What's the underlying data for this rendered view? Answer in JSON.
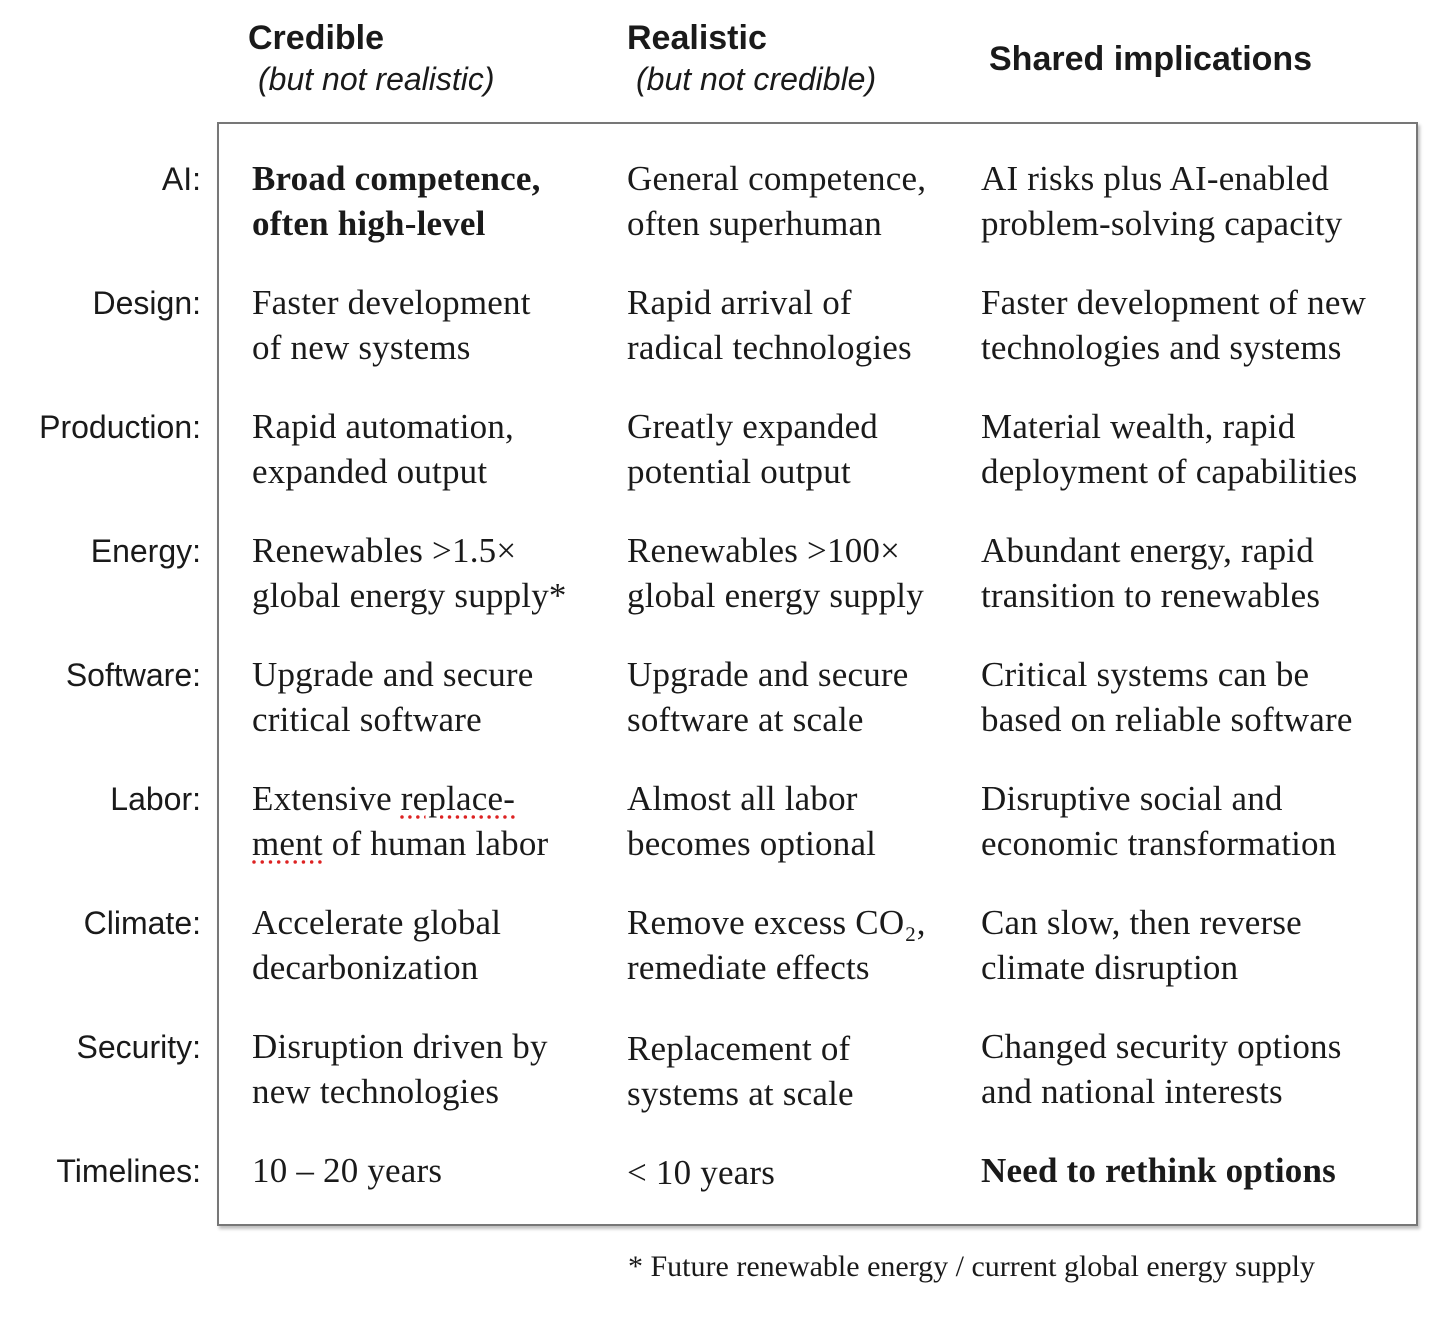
{
  "columns": [
    {
      "title": "Credible",
      "subtitle": "(but not realistic)"
    },
    {
      "title": "Realistic",
      "subtitle": "(but not credible)"
    },
    {
      "title": "Shared implications",
      "subtitle": ""
    }
  ],
  "rows": [
    {
      "label": "AI:",
      "credible": "Broad competence,\noften high-level",
      "realistic": "General competence,\noften superhuman",
      "shared": "AI risks plus AI-enabled\nproblem-solving capacity"
    },
    {
      "label": "Design:",
      "credible": "Faster development\nof new systems",
      "realistic": "Rapid arrival of\nradical technologies",
      "shared": "Faster development of new\ntechnologies and systems"
    },
    {
      "label": "Production:",
      "credible": "Rapid automation,\nexpanded output",
      "realistic": "Greatly expanded\npotential output",
      "shared": "Material wealth, rapid\ndeployment of capabilities"
    },
    {
      "label": "Energy:",
      "credible": "Renewables >1.5×\nglobal energy supply*",
      "realistic": "Renewables >100×\nglobal energy supply",
      "shared": "Abundant energy, rapid\ntransition to renewables"
    },
    {
      "label": "Software:",
      "credible": "Upgrade and secure\ncritical software",
      "realistic": "Upgrade and secure\nsoftware at scale",
      "shared": "Critical systems can be\nbased on reliable software"
    },
    {
      "label": "Labor:",
      "credible_part1": "Extensive ",
      "credible_spell1": "replace-",
      "credible_spell2": "ment",
      "credible_part2": " of human labor",
      "realistic": "Almost all labor\nbecomes optional",
      "shared": "Disruptive social and\neconomic transformation"
    },
    {
      "label": "Climate:",
      "credible": "Accelerate global\ndecarbonization",
      "realistic": "Remove excess CO₂,\nremediate effects",
      "shared": "Can slow, then reverse\nclimate disruption"
    },
    {
      "label": "Security:",
      "credible": "Disruption driven by\nnew technologies",
      "realistic": "Replacement of\nsystems at scale",
      "shared": "Changed security options\nand national interests"
    },
    {
      "label": "Timelines:",
      "credible": "10 – 20 years",
      "realistic": "< 10 years",
      "shared": "Need to rethink options"
    }
  ],
  "footnote": "* Future renewable energy / current global energy supply"
}
